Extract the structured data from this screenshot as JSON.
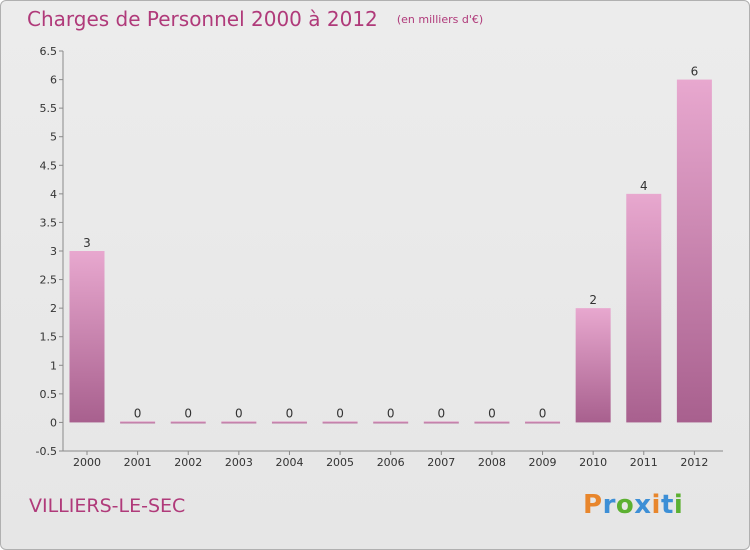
{
  "header": {
    "title": "Charges de Personnel 2000 à 2012",
    "subtitle": "(en milliers d'€)"
  },
  "footer": {
    "commune": "VILLIERS-LE-SEC",
    "logo_text": "Proxiti"
  },
  "colors": {
    "title": "#b03a7a",
    "bar_top": "#e8a8cf",
    "bar_bottom": "#a8608e"
  },
  "chart_data": {
    "type": "bar",
    "title": "Charges de Personnel 2000 à 2012",
    "subtitle": "(en milliers d'€)",
    "categories": [
      "2000",
      "2001",
      "2002",
      "2003",
      "2004",
      "2005",
      "2006",
      "2007",
      "2008",
      "2009",
      "2010",
      "2011",
      "2012"
    ],
    "values": [
      3,
      0,
      0,
      0,
      0,
      0,
      0,
      0,
      0,
      0,
      2,
      4,
      6
    ],
    "data_labels": [
      "3",
      "0",
      "0",
      "0",
      "0",
      "0",
      "0",
      "0",
      "0",
      "0",
      "2",
      "4",
      "6"
    ],
    "yticks": [
      "-0.5",
      "0",
      "0.5",
      "1",
      "1.5",
      "2",
      "2.5",
      "3",
      "3.5",
      "4",
      "4.5",
      "5",
      "5.5",
      "6",
      "6.5"
    ],
    "ylim": [
      -0.5,
      6.5
    ],
    "xlabel": "",
    "ylabel": "",
    "grid": false,
    "legend": "none"
  }
}
